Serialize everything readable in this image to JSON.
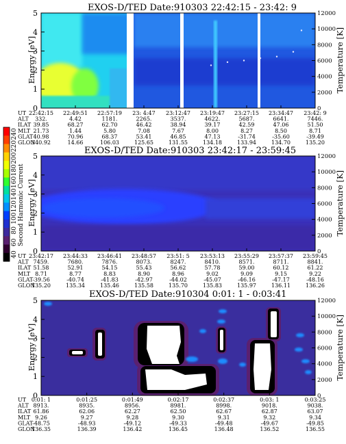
{
  "colorbar": {
    "label": "Second Harmonic Current",
    "ticks": [
      "240",
      "220",
      "200",
      "180",
      "160",
      "140",
      "120",
      "100",
      "80",
      "60",
      "40"
    ],
    "colors": [
      "#ff0000",
      "#ff4000",
      "#ff8c00",
      "#ffd200",
      "#f0ff00",
      "#a8ff00",
      "#30ff30",
      "#00e0a0",
      "#00c8e8",
      "#0090ff",
      "#0040ff",
      "#2030d0",
      "#3e2a9e",
      "#5a2070",
      "#300030",
      "#000000"
    ]
  },
  "axes": {
    "ylabel": "Energy [eV]",
    "yticks": [
      "0",
      "1",
      "2",
      "3",
      "4",
      "5"
    ],
    "rlabel": "Temperature [K]",
    "rticks": [
      "0",
      "2000",
      "4000",
      "6000",
      "8000",
      "10000",
      "12000"
    ]
  },
  "chart_data": [
    {
      "type": "heatmap",
      "title": "EXOS-D/TED  Date:910303  22:42:15 - 23:42: 9",
      "ylabel": "Energy [eV]",
      "ylim": [
        0,
        5
      ],
      "y2label": "Temperature [K]",
      "y2lim": [
        0,
        12000
      ],
      "table_rows": [
        "UT",
        "ALT",
        "ILAT",
        "MLT",
        "GLAT",
        "GLON"
      ],
      "table_cols": [
        [
          "22:42:15",
          "332.",
          "39.85",
          "21.73",
          "40.98",
          "340.92"
        ],
        [
          "22:49:51",
          "4.42",
          "68.27",
          "1.44",
          "70.96",
          "14.66"
        ],
        [
          "22:57:19",
          "1181.",
          "62.70",
          "5.80",
          "68.37",
          "106.03"
        ],
        [
          "23: 4:47",
          "2265.",
          "46.42",
          "7.08",
          "53.41",
          "125.65"
        ],
        [
          "23:12:47",
          "3537.",
          "38.94",
          "7.67",
          "46.85",
          "131.55"
        ],
        [
          "23:19:47",
          "4622.",
          "39.17",
          "8.00",
          "47.13",
          "134.18"
        ],
        [
          "23:27:15",
          "5687.",
          "42.59",
          "8.27",
          "-31.74",
          "133.94"
        ],
        [
          "23:34:47",
          "6641.",
          "47.06",
          "8.50",
          "-35.60",
          "134.70"
        ],
        [
          "23:42: 9",
          "7446.",
          "51.50",
          "8.71",
          "-39.49",
          "135.20"
        ]
      ],
      "temperature_points": [
        [
          0.62,
          5400
        ],
        [
          0.68,
          5800
        ],
        [
          0.74,
          6000
        ],
        [
          0.8,
          6300
        ],
        [
          0.86,
          6500
        ],
        [
          0.92,
          7100
        ],
        [
          0.95,
          9800
        ]
      ]
    },
    {
      "type": "heatmap",
      "title": "EXOS-D/TED  Date:910303  23:42:17 - 23:59:45",
      "ylabel": "Energy [eV]",
      "ylim": [
        0,
        5
      ],
      "y2label": "Temperature [K]",
      "y2lim": [
        0,
        12000
      ],
      "table_rows": [
        "UT",
        "ALT",
        "ILAT",
        "MLT",
        "GLAT",
        "GLON"
      ],
      "table_cols": [
        [
          "23:42:17",
          "7459.",
          "51.58",
          "8.71",
          "-39.56",
          "135.20"
        ],
        [
          "23:44:33",
          "7680.",
          "52.91",
          "8.77",
          "-40.74",
          "135.34"
        ],
        [
          "23:46:41",
          "7876.",
          "54.15",
          "8.83",
          "-41.83",
          "135.46"
        ],
        [
          "23:48:57",
          "8073.",
          "55.43",
          "8.90",
          "-42.97",
          "135.58"
        ],
        [
          "23:51: 5",
          "8247.",
          "56.62",
          "8.96",
          "-44.02",
          "135.70"
        ],
        [
          "23:53:13",
          "8410.",
          "57.78",
          "9.02",
          "-45.07",
          "135.83"
        ],
        [
          "23:55:29",
          "8571.",
          "59.00",
          "9.09",
          "-46.16",
          "135.97"
        ],
        [
          "23:57:37",
          "8711.",
          "60.12",
          "9.15",
          "-47.17",
          "136.11"
        ],
        [
          "23:59:45",
          "8841.",
          "61.22",
          "9.22",
          "-48.16",
          "136.26"
        ]
      ]
    },
    {
      "type": "heatmap",
      "title": "EXOS-D/TED  Date:910304  0:01: 1 - 0:03:41",
      "ylabel": "Energy [eV]",
      "ylim": [
        0,
        5
      ],
      "y2label": "Temperature [K]",
      "y2lim": [
        0,
        12000
      ],
      "table_rows": [
        "UT",
        "ALT",
        "ILAT",
        "MLT",
        "GLAT",
        "GLON"
      ],
      "table_cols": [
        [
          "0:01: 1",
          "8913.",
          "61.86",
          "9.26",
          "-48.75",
          "136.35"
        ],
        [
          "0:01:25",
          "8935.",
          "62.06",
          "9.27",
          "-48.93",
          "136.39"
        ],
        [
          "0:01:49",
          "8956.",
          "62.27",
          "9.28",
          "-49.12",
          "136.42"
        ],
        [
          "0:02:17",
          "8981.",
          "62.50",
          "9.30",
          "-49.33",
          "136.45"
        ],
        [
          "0:02:37",
          "8998.",
          "62.67",
          "9.31",
          "-49.48",
          "136.48"
        ],
        [
          "0:03: 1",
          "9018.",
          "62.87",
          "9.32",
          "-49.67",
          "136.52"
        ],
        [
          "0:03:25",
          "9038.",
          "63.07",
          "9.34",
          "-49.85",
          "136.55"
        ]
      ]
    }
  ]
}
